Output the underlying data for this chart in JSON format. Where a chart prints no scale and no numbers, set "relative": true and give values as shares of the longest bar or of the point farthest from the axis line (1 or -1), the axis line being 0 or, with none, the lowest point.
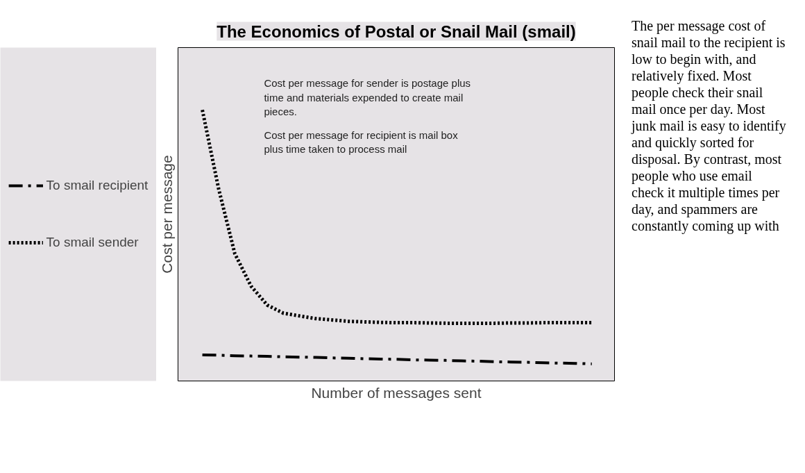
{
  "chart_data": {
    "type": "line",
    "relative": true,
    "title": "The Economics of Postal or Snail Mail (smail)",
    "ylabel": "Cost per message",
    "xlabel": "Number of messages sent",
    "categories": [
      null,
      null,
      null,
      null,
      null,
      null,
      null,
      null,
      null,
      null,
      null,
      null,
      null,
      null,
      null,
      null,
      null,
      null,
      null,
      null,
      null,
      null,
      null,
      null,
      null
    ],
    "series": [
      {
        "name": "To smail recipient",
        "color": "#000000",
        "line_style": "dashdot",
        "values": [
          0.096,
          0.095,
          0.093,
          0.092,
          0.091,
          0.089,
          0.088,
          0.087,
          0.085,
          0.084,
          0.082,
          0.081,
          0.08,
          0.078,
          0.077,
          0.076,
          0.074,
          0.073,
          0.071,
          0.07,
          0.069,
          0.067,
          0.066,
          0.065,
          0.063
        ]
      },
      {
        "name": "To smail sender",
        "color": "#000000",
        "line_style": "dotted",
        "values": [
          1.0,
          0.71,
          0.47,
          0.35,
          0.28,
          0.25,
          0.24,
          0.23,
          0.225,
          0.22,
          0.218,
          0.216,
          0.215,
          0.215,
          0.214,
          0.213,
          0.213,
          0.213,
          0.213,
          0.214,
          0.214,
          0.215,
          0.215,
          0.215,
          0.215
        ]
      }
    ],
    "legend": "left",
    "annotations": [
      "Cost per message for sender is postage plus time and materials expended to create mail pieces.",
      "Cost per message for recipient is mail box plus time taken to process mail",
      "The per message cost of snail mail to the recipient is low to begin with, and relatively fixed. Most people check their snail mail once per day. Most junk mail is easy to identify and quickly sorted for disposal. By contrast, most people who use email check it multiple times per day, and spammers are constantly coming up with"
    ]
  }
}
